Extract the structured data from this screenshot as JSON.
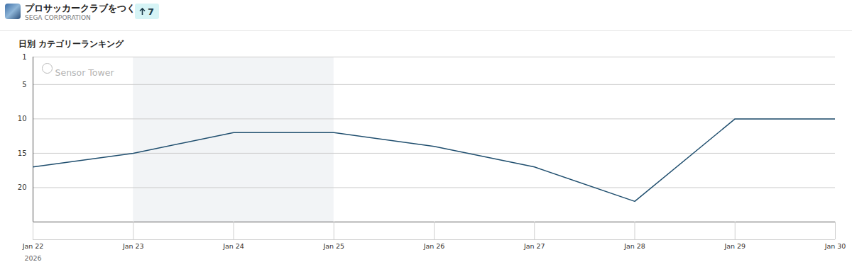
{
  "header": {
    "app_name": "プロサッカークラブをつく...",
    "publisher": "SEGA CORPORATION",
    "rank_change": 7
  },
  "chart_data": {
    "type": "line",
    "title": "日別 カテゴリーランキング",
    "x": [
      "Jan 22",
      "Jan 23",
      "Jan 24",
      "Jan 25",
      "Jan 26",
      "Jan 27",
      "Jan 28",
      "Jan 29",
      "Jan 30"
    ],
    "year_label": "2026",
    "values": [
      17,
      15,
      12,
      12,
      14,
      17,
      22,
      10,
      10
    ],
    "color": "#1f4e6e",
    "ylim": [
      1,
      25
    ],
    "yticks": [
      1,
      5,
      10,
      15,
      20
    ],
    "grid": true,
    "shaded_range": [
      "Jan 23",
      "Jan 25"
    ],
    "watermark": "Sensor Tower"
  }
}
